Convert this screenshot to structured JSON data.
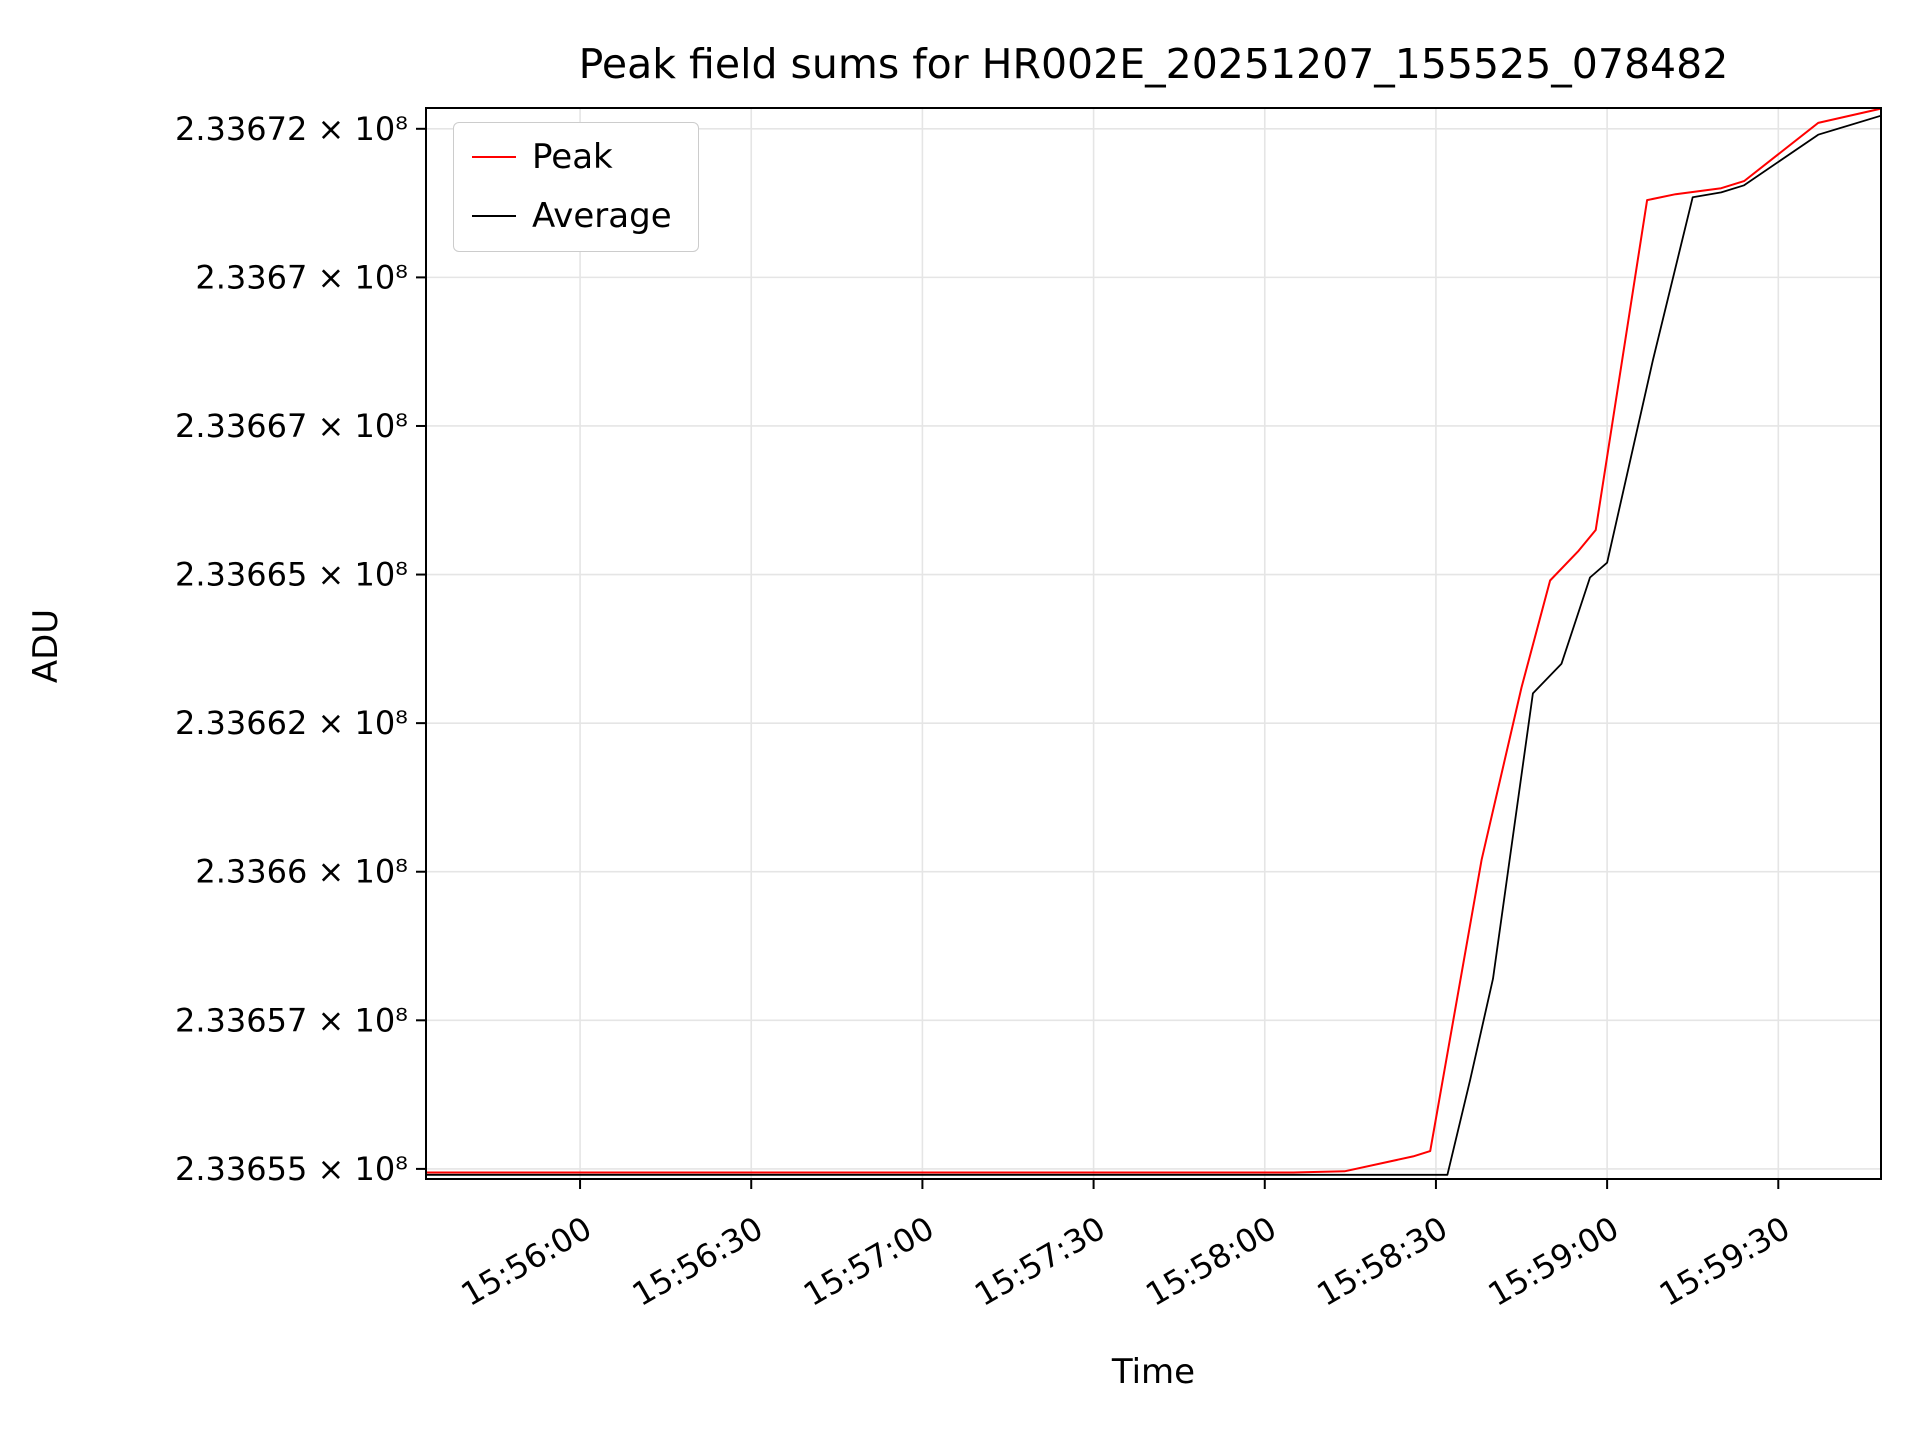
{
  "title": "Peak field sums for HR002E_20251207_155525_078482",
  "axes": {
    "x_label": "Time",
    "y_label": "ADU"
  },
  "legend": {
    "position": "upper left",
    "items": [
      {
        "label": "Peak",
        "color": "#ff0000"
      },
      {
        "label": "Average",
        "color": "#000000"
      }
    ]
  },
  "colors": {
    "background": "#ffffff",
    "grid": "#e5e5e5",
    "axis": "#000000",
    "peak_line": "#ff0000",
    "average_line": "#000000"
  },
  "chart_data": {
    "type": "line",
    "title": "Peak field sums for HR002E_20251207_155525_078482",
    "xlabel": "Time",
    "ylabel": "ADU",
    "grid": true,
    "legend_position": "upper left",
    "x_range": [
      "15:55:33",
      "15:59:48"
    ],
    "y_range": [
      233654830,
      233672850
    ],
    "x_ticks": [
      "15:56:00",
      "15:56:30",
      "15:57:00",
      "15:57:30",
      "15:58:00",
      "15:58:30",
      "15:59:00",
      "15:59:30"
    ],
    "y_ticks": [
      {
        "value": 233655000,
        "label": "2.33655 × 10⁸"
      },
      {
        "value": 233657500,
        "label": "2.33657 × 10⁸"
      },
      {
        "value": 233660000,
        "label": "2.3366 × 10⁸"
      },
      {
        "value": 233662500,
        "label": "2.33662 × 10⁸"
      },
      {
        "value": 233665000,
        "label": "2.33665 × 10⁸"
      },
      {
        "value": 233667500,
        "label": "2.33667 × 10⁸"
      },
      {
        "value": 233670000,
        "label": "2.3367 × 10⁸"
      },
      {
        "value": 233672500,
        "label": "2.33672 × 10⁸"
      }
    ],
    "series": [
      {
        "name": "Peak",
        "color": "#ff0000",
        "line_width": 2,
        "points": [
          [
            "15:55:33",
            233654940
          ],
          [
            "15:57:00",
            233654940
          ],
          [
            "15:58:05",
            233654940
          ],
          [
            "15:58:14",
            233654960
          ],
          [
            "15:58:26",
            233655210
          ],
          [
            "15:58:29",
            233655300
          ],
          [
            "15:58:38",
            233660200
          ],
          [
            "15:58:45",
            233663100
          ],
          [
            "15:58:50",
            233664900
          ],
          [
            "15:58:55",
            233665400
          ],
          [
            "15:58:58",
            233665750
          ],
          [
            "15:59:07",
            233671300
          ],
          [
            "15:59:12",
            233671400
          ],
          [
            "15:59:20",
            233671500
          ],
          [
            "15:59:24",
            233671620
          ],
          [
            "15:59:37",
            233672600
          ],
          [
            "15:59:48",
            233672840
          ]
        ]
      },
      {
        "name": "Average",
        "color": "#000000",
        "line_width": 1.8,
        "points": [
          [
            "15:55:33",
            233654900
          ],
          [
            "15:58:00",
            233654900
          ],
          [
            "15:58:32",
            233654900
          ],
          [
            "15:58:36",
            233656500
          ],
          [
            "15:58:40",
            233658200
          ],
          [
            "15:58:47",
            233663000
          ],
          [
            "15:58:52",
            233663500
          ],
          [
            "15:58:57",
            233664950
          ],
          [
            "15:59:00",
            233665200
          ],
          [
            "15:59:08",
            233668600
          ],
          [
            "15:59:15",
            233671350
          ],
          [
            "15:59:20",
            233671430
          ],
          [
            "15:59:24",
            233671550
          ],
          [
            "15:59:37",
            233672400
          ],
          [
            "15:59:48",
            233672720
          ]
        ]
      }
    ]
  }
}
